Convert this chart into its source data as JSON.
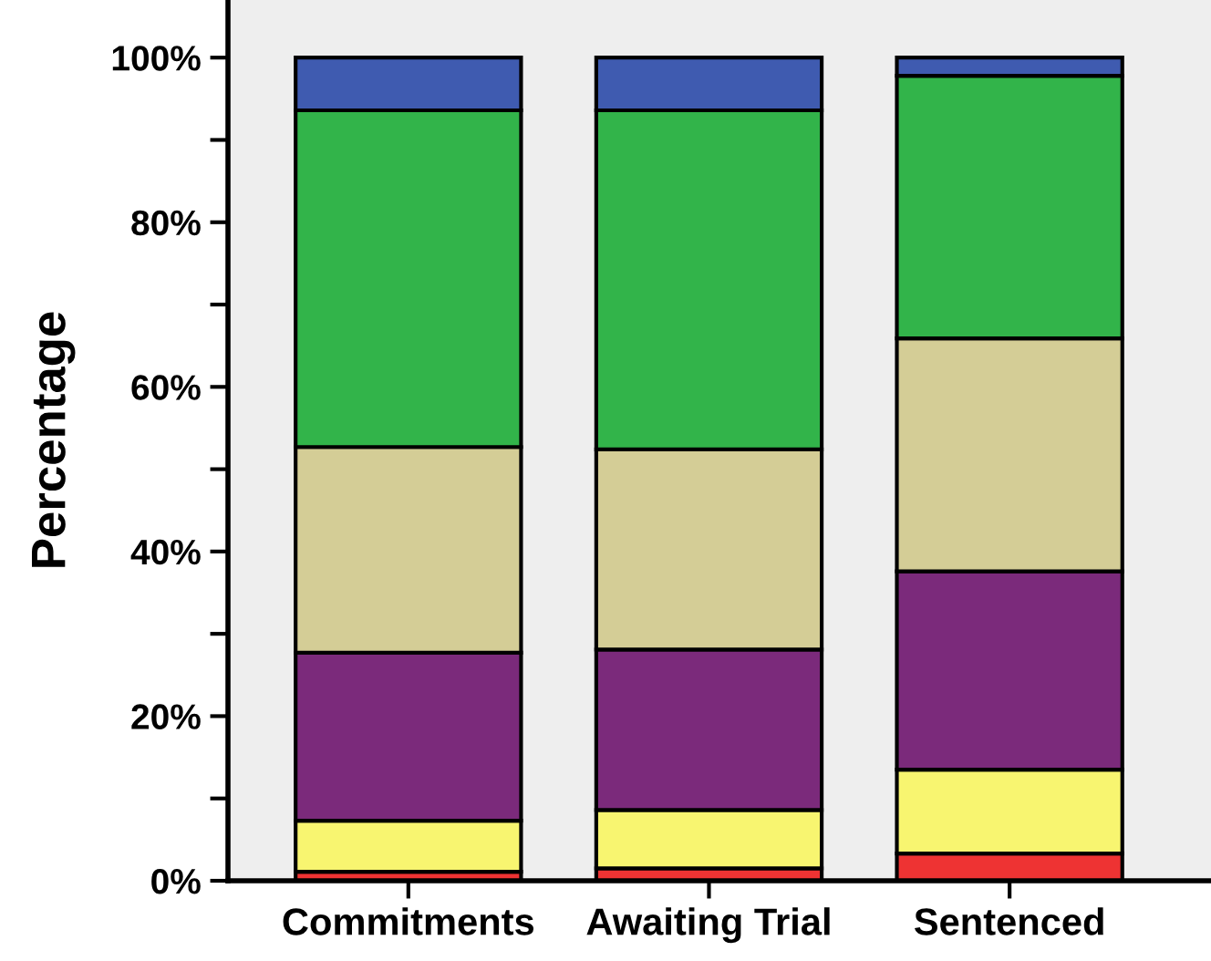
{
  "chart_data": {
    "type": "bar",
    "stacked": true,
    "ylabel": "Percentage",
    "categories": [
      "Commitments",
      "Awaiting Trial",
      "Sentenced"
    ],
    "series": [
      {
        "color": "#ee3333",
        "values": [
          1.1,
          1.5,
          3.3
        ]
      },
      {
        "color": "#f8f570",
        "values": [
          6.2,
          7.1,
          10.2
        ]
      },
      {
        "color": "#7b2a7b",
        "values": [
          20.4,
          19.5,
          24.1
        ]
      },
      {
        "color": "#d4cd96",
        "values": [
          25.0,
          24.3,
          28.3
        ]
      },
      {
        "color": "#32b44a",
        "values": [
          40.9,
          41.2,
          31.9
        ]
      },
      {
        "color": "#3f5bb0",
        "values": [
          6.4,
          6.4,
          2.2
        ]
      }
    ],
    "ylim": [
      0,
      107
    ],
    "yticks": [
      {
        "value": 0,
        "label": "0%"
      },
      {
        "value": 10,
        "label": null
      },
      {
        "value": 20,
        "label": "20%"
      },
      {
        "value": 30,
        "label": null
      },
      {
        "value": 40,
        "label": "40%"
      },
      {
        "value": 50,
        "label": null
      },
      {
        "value": 60,
        "label": "60%"
      },
      {
        "value": 70,
        "label": null
      },
      {
        "value": 80,
        "label": "80%"
      },
      {
        "value": 90,
        "label": null
      },
      {
        "value": 100,
        "label": "100%"
      }
    ],
    "grid": false
  }
}
